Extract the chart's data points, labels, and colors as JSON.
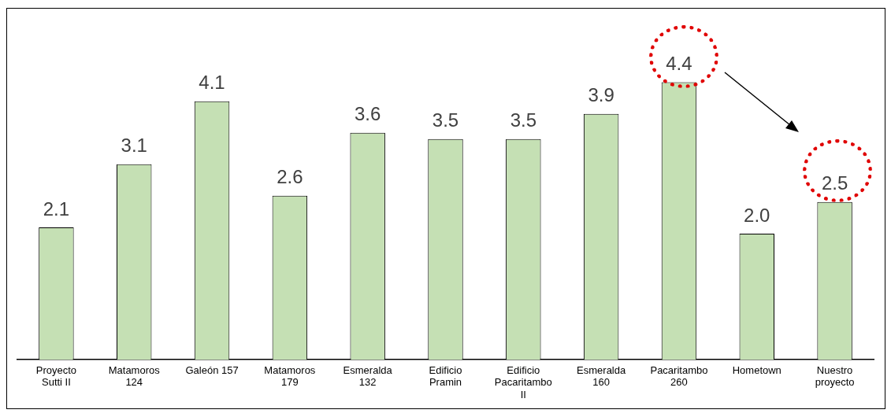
{
  "chart_data": {
    "type": "bar",
    "categories": [
      "Proyecto Sutti II",
      "Matamoros 124",
      "Galeón 157",
      "Matamoros 179",
      "Esmeralda 132",
      "Edificio Pramin",
      "Edificio Pacaritambo II",
      "Esmeralda 160",
      "Pacaritambo 260",
      "Hometown",
      "Nuestro proyecto"
    ],
    "values": [
      2.1,
      3.1,
      4.1,
      2.6,
      3.6,
      3.5,
      3.5,
      3.9,
      4.4,
      2.0,
      2.5
    ],
    "color": "#c5e0b4",
    "value_labels": [
      "2.1",
      "3.1",
      "4.1",
      "2.6",
      "3.6",
      "3.5",
      "3.5",
      "3.9",
      "4.4",
      "2.0",
      "2.5"
    ],
    "grid": false,
    "legend": false,
    "tick_labels": "x"
  }
}
